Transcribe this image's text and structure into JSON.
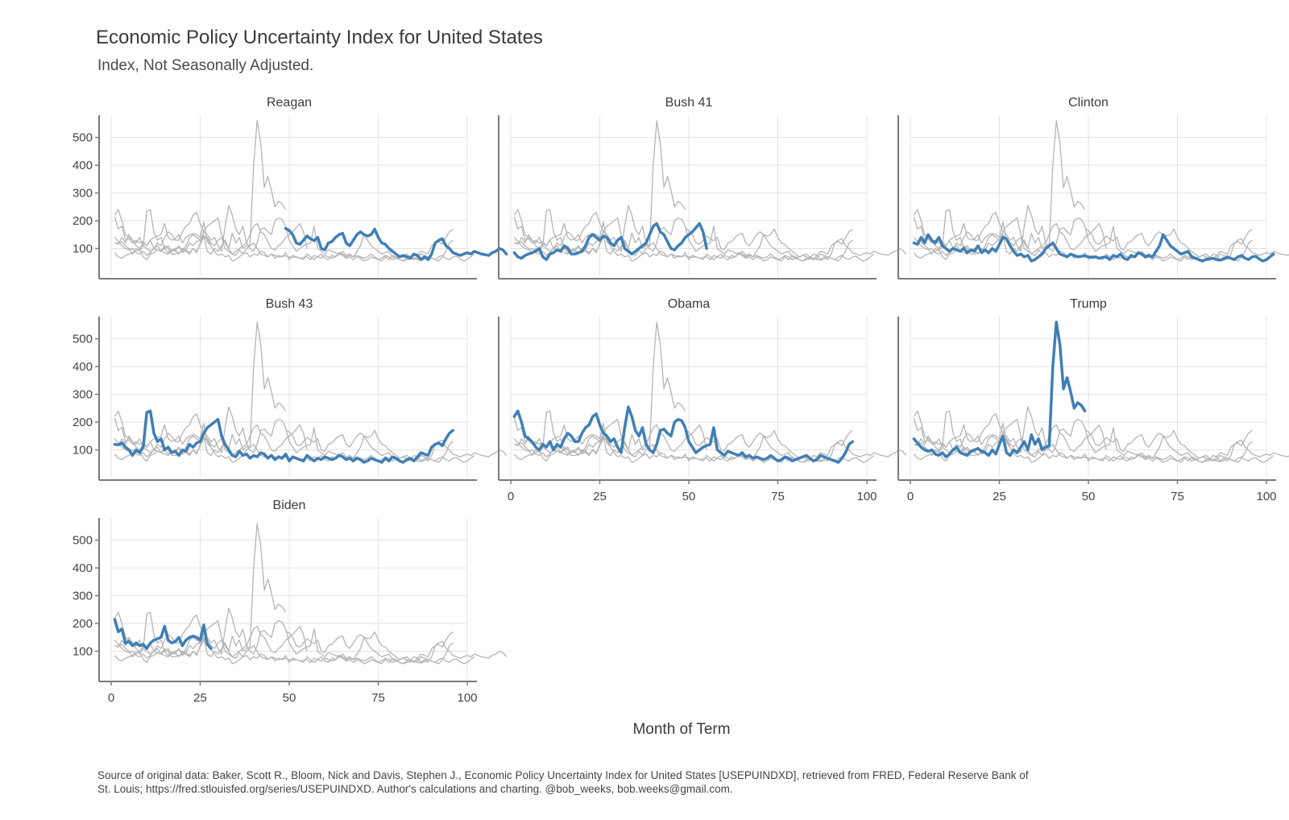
{
  "chart_data": {
    "type": "line",
    "title": "Economic Policy Uncertainty Index for United States",
    "subtitle": "Index, Not Seasonally Adjusted.",
    "xlabel": "Month of Term",
    "ylabel": "",
    "xlim": [
      0,
      100
    ],
    "ylim": [
      0,
      580
    ],
    "x_ticks": [
      0,
      25,
      50,
      75,
      100
    ],
    "y_ticks": [
      100,
      200,
      300,
      400,
      500
    ],
    "grid": true,
    "highlight_color": "#3f7fb5",
    "background_color": "#b4b4b4",
    "caption": [
      "Source of original data: Baker, Scott R., Bloom, Nick and Davis, Stephen J., Economic Policy Uncertainty Index for United States [USEPUINDXD], retrieved from FRED, Federal Reserve Bank of",
      "St. Louis; https://fred.stlouisfed.org/series/USEPUINDXD. Author's calculations and charting. @bob_weeks, bob.weeks@gmail.com."
    ],
    "panels": [
      "Reagan",
      "Bush 41",
      "Clinton",
      "Bush 43",
      "Obama",
      "Trump",
      "Biden"
    ],
    "series": [
      {
        "name": "Reagan",
        "start_month": 49,
        "values": [
          172,
          165,
          150,
          120,
          115,
          130,
          145,
          135,
          128,
          140,
          100,
          95,
          120,
          125,
          140,
          150,
          155,
          120,
          110,
          130,
          150,
          160,
          150,
          145,
          150,
          170,
          140,
          120,
          115,
          100,
          90,
          80,
          70,
          75,
          70,
          65,
          80,
          75,
          60,
          70,
          60,
          80,
          120,
          130,
          135,
          110,
          100,
          85,
          80,
          75,
          80,
          85,
          80,
          90,
          85,
          80,
          78,
          75,
          85,
          90,
          100,
          95,
          80
        ]
      },
      {
        "name": "Bush 41",
        "values": [
          85,
          70,
          65,
          75,
          80,
          85,
          90,
          100,
          70,
          60,
          80,
          85,
          95,
          90,
          110,
          100,
          80,
          80,
          85,
          90,
          110,
          140,
          150,
          140,
          130,
          145,
          140,
          120,
          110,
          130,
          140,
          100,
          90,
          80,
          90,
          100,
          110,
          120,
          150,
          180,
          190,
          160,
          150,
          125,
          100,
          95,
          110,
          120,
          140,
          150,
          160,
          175,
          190,
          160,
          100
        ]
      },
      {
        "name": "Clinton",
        "values": [
          120,
          115,
          140,
          120,
          150,
          130,
          120,
          140,
          110,
          100,
          90,
          100,
          95,
          90,
          100,
          85,
          95,
          90,
          110,
          85,
          95,
          85,
          100,
          90,
          115,
          140,
          135,
          110,
          90,
          75,
          80,
          70,
          75,
          55,
          60,
          70,
          80,
          100,
          110,
          120,
          100,
          80,
          75,
          70,
          80,
          75,
          70,
          72,
          74,
          70,
          68,
          70,
          65,
          68,
          70,
          60,
          75,
          70,
          80,
          65,
          60,
          75,
          70,
          85,
          80,
          70,
          75,
          70,
          90,
          110,
          150,
          130,
          110,
          100,
          90,
          80,
          85,
          90,
          70,
          65,
          60,
          55,
          60,
          62,
          65,
          60,
          58,
          62,
          70,
          65,
          60,
          70,
          75,
          65,
          60,
          70,
          72,
          62,
          55,
          60,
          70,
          80
        ]
      },
      {
        "name": "Bush 43",
        "values": [
          120,
          118,
          125,
          110,
          100,
          80,
          100,
          90,
          110,
          235,
          240,
          160,
          130,
          140,
          100,
          110,
          90,
          95,
          80,
          100,
          95,
          120,
          110,
          125,
          130,
          160,
          180,
          190,
          200,
          210,
          150,
          120,
          100,
          80,
          75,
          95,
          80,
          85,
          70,
          80,
          75,
          90,
          85,
          70,
          80,
          65,
          75,
          70,
          85,
          60,
          75,
          70,
          65,
          60,
          80,
          70,
          60,
          70,
          65,
          75,
          70,
          65,
          70,
          80,
          75,
          65,
          70,
          60,
          70,
          65,
          55,
          60,
          70,
          65,
          60,
          55,
          70,
          60,
          75,
          70,
          60,
          55,
          65,
          70,
          60,
          75,
          90,
          85,
          80,
          110,
          120,
          125,
          115,
          140,
          160,
          170
        ]
      },
      {
        "name": "Obama",
        "values": [
          220,
          240,
          200,
          150,
          140,
          130,
          110,
          100,
          120,
          110,
          130,
          100,
          120,
          110,
          140,
          160,
          150,
          130,
          130,
          160,
          180,
          190,
          220,
          230,
          190,
          160,
          150,
          130,
          140,
          110,
          90,
          180,
          255,
          220,
          170,
          150,
          180,
          120,
          100,
          90,
          120,
          170,
          175,
          160,
          150,
          200,
          210,
          205,
          180,
          130,
          110,
          90,
          100,
          110,
          115,
          120,
          180,
          100,
          90,
          80,
          95,
          90,
          85,
          80,
          90,
          75,
          80,
          70,
          75,
          70,
          65,
          70,
          80,
          70,
          60,
          65,
          75,
          70,
          60,
          65,
          70,
          75,
          80,
          70,
          60,
          65,
          80,
          75,
          70,
          65,
          60,
          55,
          70,
          90,
          120,
          130
        ]
      },
      {
        "name": "Trump",
        "values": [
          140,
          125,
          110,
          100,
          95,
          100,
          85,
          80,
          90,
          75,
          85,
          100,
          110,
          90,
          85,
          80,
          95,
          100,
          105,
          95,
          90,
          80,
          100,
          85,
          120,
          150,
          90,
          80,
          100,
          90,
          110,
          130,
          100,
          155,
          120,
          140,
          100,
          110,
          115,
          400,
          560,
          480,
          320,
          360,
          310,
          250,
          270,
          260,
          240
        ]
      },
      {
        "name": "Biden",
        "values": [
          215,
          170,
          180,
          130,
          135,
          120,
          130,
          120,
          125,
          110,
          130,
          140,
          145,
          150,
          190,
          140,
          130,
          135,
          150,
          120,
          140,
          150,
          155,
          150,
          140,
          195,
          125,
          110
        ]
      }
    ]
  }
}
